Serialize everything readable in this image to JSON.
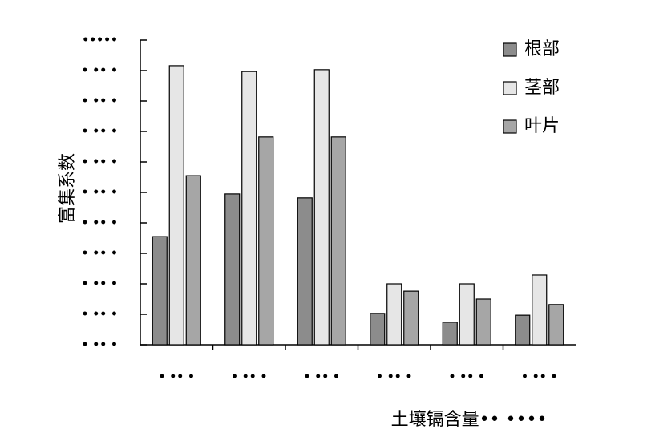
{
  "chart_data": {
    "type": "bar",
    "xlabel": "土壤镉含量•• ••••",
    "ylabel": "富集系数",
    "categories": [
      "• •• •",
      "• •• •",
      "• •• •",
      "• •• •",
      "• •• •",
      "• •• •"
    ],
    "series": [
      {
        "name": "根部",
        "color": "#8c8c8c",
        "values": [
          0.355,
          0.495,
          0.482,
          0.103,
          0.074,
          0.097
        ]
      },
      {
        "name": "茎部",
        "color": "#e6e6e6",
        "values": [
          0.916,
          0.897,
          0.903,
          0.2,
          0.2,
          0.229
        ]
      },
      {
        "name": "叶片",
        "color": "#a6a6a6",
        "values": [
          0.555,
          0.682,
          0.682,
          0.176,
          0.15,
          0.132
        ]
      }
    ],
    "ylim": [
      0,
      1
    ],
    "yticks": [
      {
        "value": 0,
        "label": "• •• •"
      },
      {
        "value": 0.1,
        "label": "• •• •"
      },
      {
        "value": 0.2,
        "label": "• •• •"
      },
      {
        "value": 0.3,
        "label": "• •• •"
      },
      {
        "value": 0.4,
        "label": "• •• •"
      },
      {
        "value": 0.5,
        "label": "• •• •"
      },
      {
        "value": 0.6,
        "label": "• •• •"
      },
      {
        "value": 0.7,
        "label": "• •• •"
      },
      {
        "value": 0.8,
        "label": "• •• •"
      },
      {
        "value": 0.9,
        "label": "• •• •"
      },
      {
        "value": 1,
        "label": "•••••"
      }
    ],
    "legend": "upper right"
  }
}
